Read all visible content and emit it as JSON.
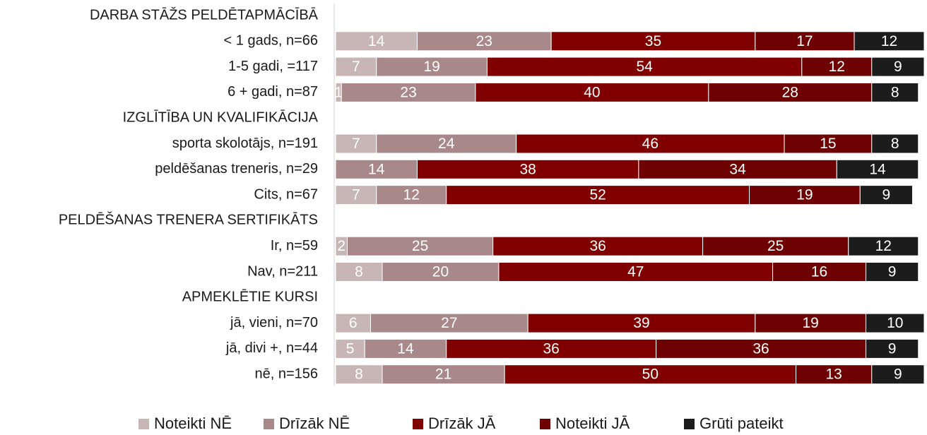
{
  "chart_data": {
    "type": "stacked_barh",
    "categories": [
      "DARBA STĀŽS PELDĒTAPMĀCĪBĀ",
      "< 1 gads, n=66",
      "1-5 gadi, =117",
      "6 + gadi, n=87",
      "IZGLĪTĪBA UN KVALIFIKĀCIJA",
      "sporta skolotājs, n=191",
      "peldēšanas treneris, n=29",
      "Cits, n=67",
      "PELDĒŠANAS TRENERA SERTIFIKĀTS",
      "Ir, n=59",
      "Nav, n=211",
      "APMEKLĒTIE KURSI",
      "jā, vieni, n=70",
      "jā, divi +, n=44",
      "nē, n=156"
    ],
    "series": [
      {
        "name": "Noteikti NĒ",
        "color": "#c8b5b5",
        "values": [
          null,
          14,
          7,
          1,
          null,
          7,
          null,
          7,
          null,
          2,
          8,
          null,
          6,
          5,
          8
        ]
      },
      {
        "name": "Drīzāk NĒ",
        "color": "#a88888",
        "values": [
          null,
          23,
          19,
          23,
          null,
          24,
          14,
          12,
          null,
          25,
          20,
          null,
          27,
          14,
          21
        ]
      },
      {
        "name": "Drīzāk JĀ",
        "color": "#800000",
        "values": [
          null,
          35,
          54,
          40,
          null,
          46,
          38,
          52,
          null,
          36,
          47,
          null,
          39,
          36,
          50
        ]
      },
      {
        "name": "Noteikti JĀ",
        "color": "#6e0202",
        "values": [
          null,
          17,
          12,
          28,
          null,
          15,
          34,
          19,
          null,
          25,
          16,
          null,
          19,
          36,
          13
        ]
      },
      {
        "name": "Grūti pateikt",
        "color": "#1c1c1c",
        "values": [
          null,
          12,
          9,
          8,
          null,
          8,
          14,
          9,
          null,
          12,
          9,
          null,
          10,
          9,
          9
        ]
      }
    ],
    "xlim": [
      0,
      101
    ]
  }
}
